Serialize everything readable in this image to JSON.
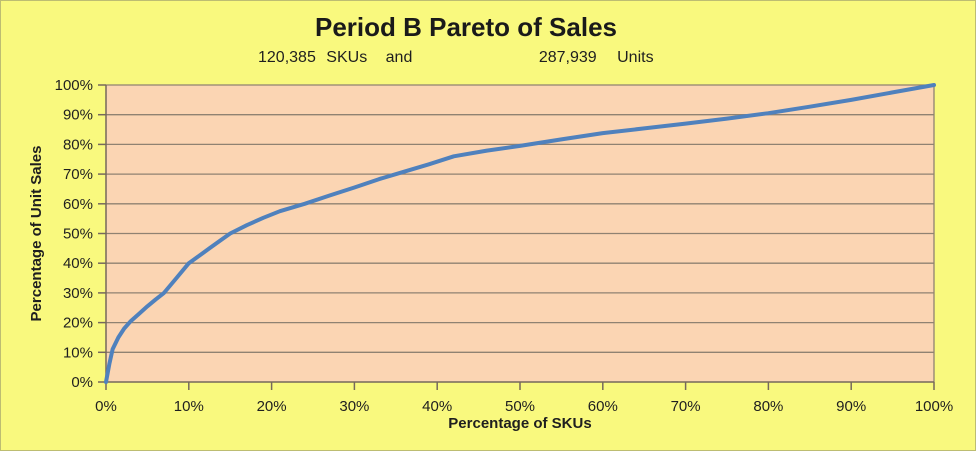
{
  "title": "Period B Pareto of Sales",
  "subtitle": {
    "sku_count": "120,385",
    "sku_label": "SKUs",
    "conjunction": "and",
    "unit_count": "287,939",
    "unit_label": "Units"
  },
  "colors": {
    "background": "#F9F97E",
    "plot_fill": "#FBD5B3",
    "line": "#4F81BD",
    "gridline": "#8F8272",
    "axis": "#76685C",
    "text": "#1F1F1F"
  },
  "chart_data": {
    "type": "line",
    "title": "Period B Pareto of Sales",
    "subtitle": "120,385 SKUs and 287,939 Units",
    "xlabel": "Percentage of SKUs",
    "ylabel": "Percentage of Unit Sales",
    "xlim": [
      0,
      100
    ],
    "ylim": [
      0,
      100
    ],
    "x_tick_labels": [
      "0%",
      "10%",
      "20%",
      "30%",
      "40%",
      "50%",
      "60%",
      "70%",
      "80%",
      "90%",
      "100%"
    ],
    "y_tick_labels": [
      "0%",
      "10%",
      "20%",
      "30%",
      "40%",
      "50%",
      "60%",
      "70%",
      "80%",
      "90%",
      "100%"
    ],
    "grid": "horizontal-only",
    "legend": "none",
    "series": [
      {
        "name": "Cumulative percentage of unit sales vs percentage of SKUs",
        "x": [
          0,
          0.4,
          0.8,
          1.5,
          2.2,
          3,
          4,
          5,
          6,
          7,
          8.5,
          10,
          11,
          12.5,
          14,
          15,
          17,
          19,
          21,
          24,
          27,
          30,
          33,
          36,
          39,
          42,
          46,
          50,
          55,
          60,
          65,
          70,
          75,
          80,
          85,
          90,
          95,
          100
        ],
        "y": [
          0,
          6,
          11,
          15,
          18,
          20.5,
          23,
          25.5,
          27.8,
          30,
          35,
          40,
          42,
          45,
          48,
          50,
          52.8,
          55.3,
          57.5,
          60,
          62.8,
          65.5,
          68.3,
          70.8,
          73.3,
          76,
          77.9,
          79.5,
          81.7,
          83.8,
          85.4,
          87,
          88.7,
          90.5,
          92.7,
          95,
          97.5,
          100
        ]
      }
    ],
    "annotations": {
      "sku_count": "120,385",
      "unit_count": "287,939"
    }
  }
}
